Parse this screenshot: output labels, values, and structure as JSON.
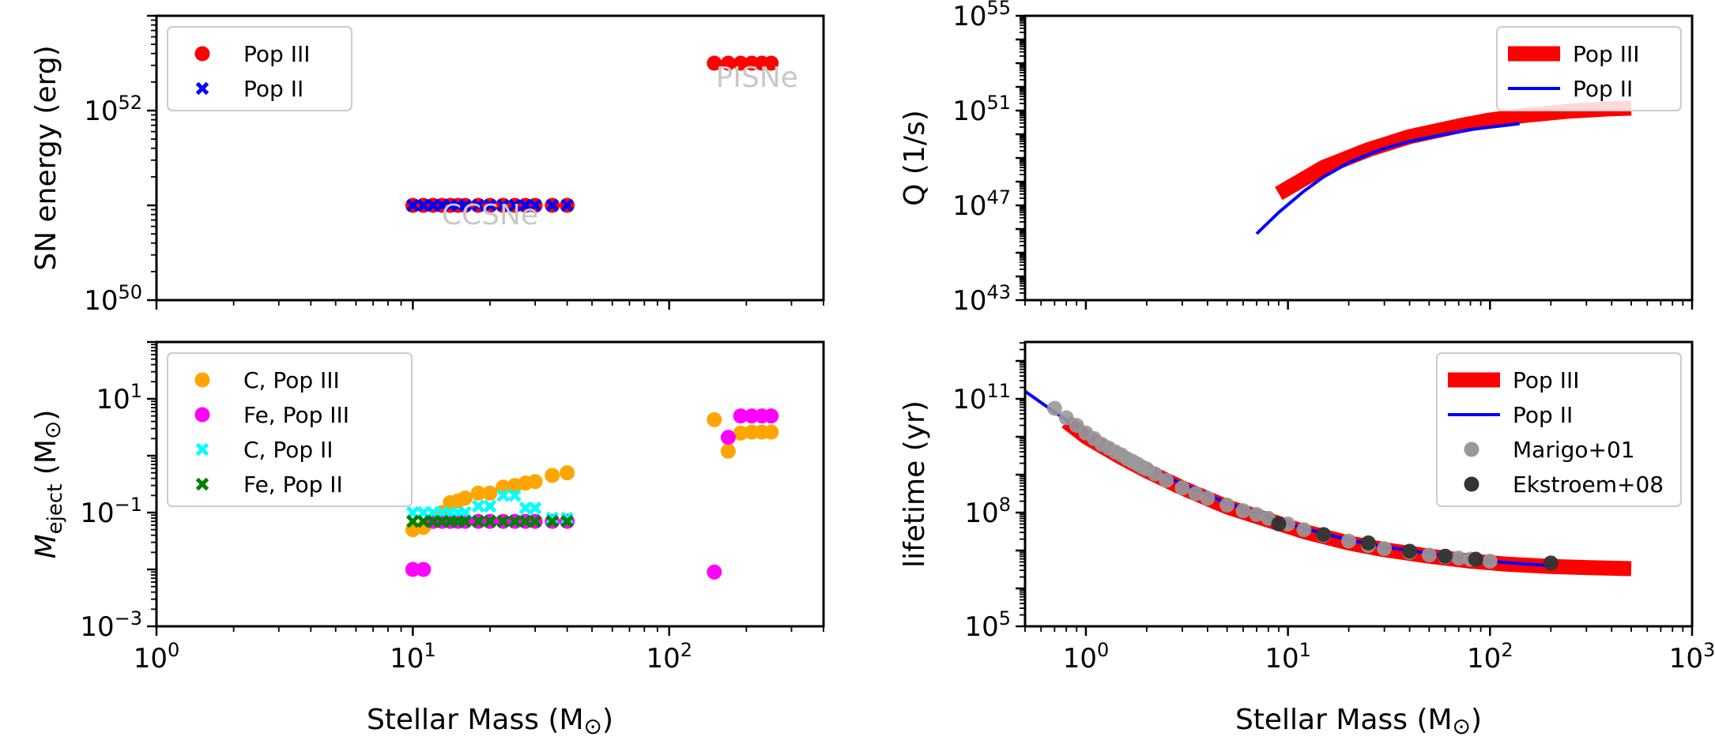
{
  "chart_data": [
    {
      "id": "sn_energy",
      "type": "scatter",
      "title": "",
      "xlabel": "",
      "ylabel": "SN energy (erg)",
      "xscale": "log",
      "yscale": "log",
      "xlim": [
        1,
        400
      ],
      "ylim_exp": [
        50,
        53
      ],
      "xticks": [
        {
          "base": "10",
          "exp": "0",
          "v": 1
        },
        {
          "base": "10",
          "exp": "1",
          "v": 10
        },
        {
          "base": "10",
          "exp": "2",
          "v": 100
        }
      ],
      "yticks": [
        {
          "base": "10",
          "exp": "50",
          "v": 50
        },
        {
          "base": "10",
          "exp": "52",
          "v": 52
        }
      ],
      "show_xticklabels": false,
      "legend": "top-left",
      "annotations": [
        {
          "text": "CCSNe",
          "x": 20,
          "y": 50.8,
          "color": "#c8c8c8"
        },
        {
          "text": "PISNe",
          "x": 220,
          "y": 52.25,
          "color": "#c8c8c8"
        }
      ],
      "series": [
        {
          "name": "Pop III",
          "marker": "circle",
          "color": "#ff0000",
          "x": [
            10,
            11,
            12,
            13,
            14,
            15,
            16,
            18,
            20,
            22.5,
            25,
            27.5,
            30,
            35,
            40,
            150,
            170,
            190,
            210,
            230,
            250
          ],
          "y": [
            51,
            51,
            51,
            51,
            51,
            51,
            51,
            51,
            51,
            51,
            51,
            51,
            51,
            51,
            51,
            52.5,
            52.5,
            52.5,
            52.5,
            52.5,
            52.5
          ]
        },
        {
          "name": "Pop II",
          "marker": "x",
          "color": "#0000ff",
          "x": [
            10,
            11,
            12,
            13,
            14,
            15,
            16,
            18,
            20,
            22.5,
            25,
            27.5,
            30,
            35,
            40
          ],
          "y": [
            51,
            51,
            51,
            51,
            51,
            51,
            51,
            51,
            51,
            51,
            51,
            51,
            51,
            51,
            51
          ]
        }
      ]
    },
    {
      "id": "ejecta",
      "type": "scatter",
      "title": "",
      "xlabel": "Stellar Mass (M",
      "xlabel_sym": "⊙",
      "xlabel_tail": ")",
      "ylabel": "M",
      "ylabel_sub": "eject",
      "ylabel_tail": " (M",
      "ylabel_sym": "⊙",
      "ylabel_end": ")",
      "xscale": "log",
      "yscale": "log",
      "xlim": [
        1,
        400
      ],
      "ylim_exp": [
        -3,
        2
      ],
      "xticks": [
        {
          "base": "10",
          "exp": "0",
          "v": 1
        },
        {
          "base": "10",
          "exp": "1",
          "v": 10
        },
        {
          "base": "10",
          "exp": "2",
          "v": 100
        }
      ],
      "yticks": [
        {
          "base": "10",
          "exp": "−3",
          "v": -3
        },
        {
          "base": "10",
          "exp": "−1",
          "v": -1
        },
        {
          "base": "10",
          "exp": "1",
          "v": 1
        }
      ],
      "show_xticklabels": true,
      "legend": "top-left",
      "series": [
        {
          "name": "C, Pop III",
          "marker": "circle",
          "color": "#ffa500",
          "x": [
            10,
            11,
            12,
            13,
            14,
            15,
            16,
            18,
            20,
            22.5,
            25,
            27.5,
            30,
            35,
            40,
            150,
            170,
            190,
            210,
            230,
            250
          ],
          "y": [
            0.05,
            0.055,
            0.07,
            0.1,
            0.15,
            0.16,
            0.18,
            0.22,
            0.22,
            0.28,
            0.3,
            0.33,
            0.35,
            0.45,
            0.5,
            4.3,
            1.2,
            2.5,
            2.6,
            2.6,
            2.6
          ]
        },
        {
          "name": "Fe, Pop III",
          "marker": "circle",
          "color": "#ff00ff",
          "x": [
            10,
            11,
            12,
            13,
            14,
            15,
            16,
            18,
            20,
            22.5,
            25,
            27.5,
            30,
            35,
            40,
            150,
            170,
            190,
            210,
            230,
            250
          ],
          "y": [
            0.01,
            0.01,
            0.07,
            0.07,
            0.07,
            0.07,
            0.07,
            0.07,
            0.07,
            0.07,
            0.07,
            0.07,
            0.07,
            0.07,
            0.07,
            0.009,
            2.1,
            5.0,
            5.0,
            5.0,
            5.0
          ]
        },
        {
          "name": "C, Pop II",
          "marker": "x",
          "color": "#00ffff",
          "x": [
            10,
            11,
            12,
            13,
            14,
            15,
            16,
            18,
            20,
            22.5,
            25,
            27.5,
            30,
            35,
            40
          ],
          "y": [
            0.1,
            0.1,
            0.1,
            0.1,
            0.1,
            0.1,
            0.1,
            0.13,
            0.13,
            0.2,
            0.2,
            0.12,
            0.12,
            0.08,
            0.08
          ]
        },
        {
          "name": "Fe, Pop II",
          "marker": "x",
          "color": "#008000",
          "x": [
            10,
            11,
            12,
            13,
            14,
            15,
            16,
            18,
            20,
            22.5,
            25,
            27.5,
            30,
            35,
            40
          ],
          "y": [
            0.07,
            0.07,
            0.07,
            0.07,
            0.07,
            0.07,
            0.07,
            0.07,
            0.07,
            0.07,
            0.07,
            0.07,
            0.07,
            0.07,
            0.07
          ]
        }
      ]
    },
    {
      "id": "ionizing",
      "type": "line",
      "title": "",
      "xlabel": "",
      "ylabel": "Q (1/s)",
      "xscale": "log",
      "yscale": "log",
      "xlim": [
        0.5,
        1000
      ],
      "ylim_exp": [
        43,
        55
      ],
      "xticks": [
        {
          "base": "10",
          "exp": "0",
          "v": 1
        },
        {
          "base": "10",
          "exp": "1",
          "v": 10
        },
        {
          "base": "10",
          "exp": "2",
          "v": 100
        },
        {
          "base": "10",
          "exp": "3",
          "v": 1000
        }
      ],
      "yticks": [
        {
          "base": "10",
          "exp": "43",
          "v": 43
        },
        {
          "base": "10",
          "exp": "47",
          "v": 47
        },
        {
          "base": "10",
          "exp": "51",
          "v": 51
        },
        {
          "base": "10",
          "exp": "55",
          "v": 55
        }
      ],
      "show_xticklabels": false,
      "legend": "top-right",
      "series": [
        {
          "name": "Pop III",
          "style": "band",
          "color": "#ff0000",
          "x": [
            9,
            15,
            25,
            40,
            70,
            100,
            150,
            250,
            400,
            500
          ],
          "logy": [
            47.5,
            48.6,
            49.35,
            49.9,
            50.35,
            50.6,
            50.8,
            50.98,
            51.08,
            51.1
          ]
        },
        {
          "name": "Pop II",
          "style": "line",
          "color": "#0000ff",
          "x": [
            7,
            9,
            12,
            15,
            20,
            25,
            30,
            40,
            60,
            80,
            100,
            120,
            140
          ],
          "logy": [
            45.8,
            46.7,
            47.6,
            48.2,
            48.8,
            49.15,
            49.4,
            49.7,
            50.0,
            50.2,
            50.3,
            50.38,
            50.45
          ]
        }
      ]
    },
    {
      "id": "lifetime",
      "type": "line",
      "title": "",
      "xlabel": "Stellar Mass (M",
      "xlabel_sym": "⊙",
      "xlabel_tail": ")",
      "ylabel": "lifetime (yr)",
      "xscale": "log",
      "yscale": "log",
      "xlim": [
        0.5,
        1000
      ],
      "ylim_exp": [
        5,
        12.5
      ],
      "xticks": [
        {
          "base": "10",
          "exp": "0",
          "v": 1
        },
        {
          "base": "10",
          "exp": "1",
          "v": 10
        },
        {
          "base": "10",
          "exp": "2",
          "v": 100
        },
        {
          "base": "10",
          "exp": "3",
          "v": 1000
        }
      ],
      "yticks": [
        {
          "base": "10",
          "exp": "5",
          "v": 5
        },
        {
          "base": "10",
          "exp": "8",
          "v": 8
        },
        {
          "base": "10",
          "exp": "11",
          "v": 11
        }
      ],
      "show_xticklabels": true,
      "legend": "top-right",
      "series": [
        {
          "name": "Pop III",
          "style": "band",
          "color": "#ff0000",
          "x": [
            0.8,
            1,
            1.5,
            2,
            3,
            5,
            8,
            12,
            20,
            30,
            50,
            80,
            120,
            200,
            300,
            500
          ],
          "logy": [
            10.4,
            10.0,
            9.45,
            9.1,
            8.65,
            8.15,
            7.8,
            7.5,
            7.2,
            7.02,
            6.85,
            6.72,
            6.64,
            6.58,
            6.55,
            6.52
          ]
        },
        {
          "name": "Pop II",
          "style": "line",
          "color": "#0000ff",
          "x": [
            0.5,
            0.7,
            1,
            1.5,
            2,
            3,
            5,
            8,
            12,
            20,
            30,
            50,
            80,
            120,
            200
          ],
          "logy": [
            11.2,
            10.65,
            10.1,
            9.55,
            9.2,
            8.75,
            8.25,
            7.88,
            7.58,
            7.28,
            7.1,
            6.92,
            6.78,
            6.68,
            6.6
          ]
        },
        {
          "name": "Marigo+01",
          "style": "points",
          "color": "#999999",
          "x": [
            0.7,
            0.8,
            0.9,
            1.0,
            1.1,
            1.2,
            1.3,
            1.4,
            1.5,
            1.6,
            1.7,
            1.8,
            1.9,
            2.0,
            2.2,
            2.5,
            3,
            3.5,
            4,
            5,
            6,
            7,
            8,
            10,
            12,
            15,
            20,
            25,
            30,
            40,
            50,
            60,
            70,
            80,
            100
          ],
          "logy": [
            10.75,
            10.5,
            10.3,
            10.1,
            9.95,
            9.8,
            9.7,
            9.6,
            9.52,
            9.42,
            9.35,
            9.28,
            9.2,
            9.15,
            9.02,
            8.85,
            8.65,
            8.5,
            8.38,
            8.2,
            8.05,
            7.95,
            7.85,
            7.7,
            7.55,
            7.4,
            7.25,
            7.13,
            7.05,
            6.95,
            6.88,
            6.83,
            6.8,
            6.77,
            6.72
          ]
        },
        {
          "name": "Ekstroem+08",
          "style": "points",
          "color": "#333333",
          "x": [
            9,
            15,
            25,
            40,
            60,
            85,
            200
          ],
          "logy": [
            7.7,
            7.42,
            7.2,
            6.98,
            6.85,
            6.77,
            6.67
          ]
        }
      ]
    }
  ]
}
